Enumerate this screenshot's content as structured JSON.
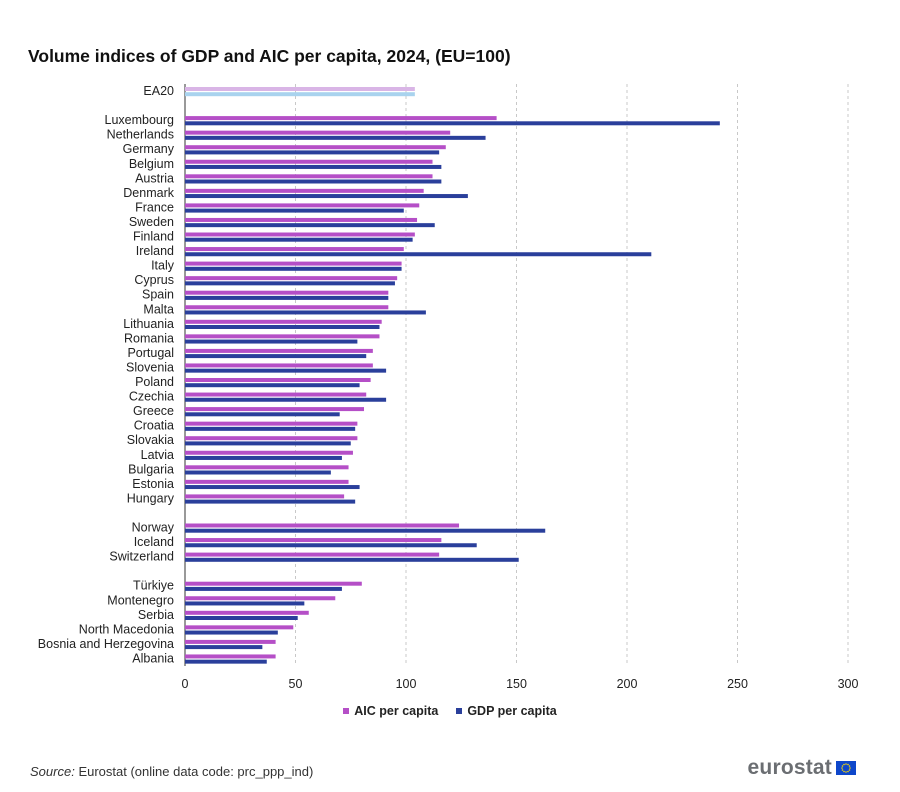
{
  "title": "Volume indices of GDP and AIC per capita, 2024, (EU=100)",
  "source_label": "Source:",
  "source_text": "Eurostat (online data code: prc_ppp_ind)",
  "logo_text": "eurostat",
  "colors": {
    "aic": "#b54fc7",
    "gdp": "#2a3f9b",
    "aic_ea20": "#d9b5e6",
    "gdp_ea20": "#a9d3ee",
    "grid": "#c8c8c8"
  },
  "chart_data": {
    "type": "bar",
    "orientation": "horizontal",
    "title": "Volume indices of GDP and AIC per capita, 2024, (EU=100)",
    "xlim": [
      0,
      300
    ],
    "xticks": [
      0,
      50,
      100,
      150,
      200,
      250,
      300
    ],
    "grid": "vertical dashed",
    "legend": "bottom-center",
    "series_names": [
      "AIC per capita",
      "GDP per capita"
    ],
    "groups": [
      {
        "categories": [
          "EA20"
        ]
      },
      {
        "categories": [
          "Luxembourg",
          "Netherlands",
          "Germany",
          "Belgium",
          "Austria",
          "Denmark",
          "France",
          "Sweden",
          "Finland",
          "Ireland",
          "Italy",
          "Cyprus",
          "Spain",
          "Malta",
          "Lithuania",
          "Romania",
          "Portugal",
          "Slovenia",
          "Poland",
          "Czechia",
          "Greece",
          "Croatia",
          "Slovakia",
          "Latvia",
          "Bulgaria",
          "Estonia",
          "Hungary"
        ]
      },
      {
        "categories": [
          "Norway",
          "Iceland",
          "Switzerland"
        ]
      },
      {
        "categories": [
          "Türkiye",
          "Montenegro",
          "Serbia",
          "North Macedonia",
          "Bosnia and Herzegovina",
          "Albania"
        ]
      }
    ],
    "series": [
      {
        "name": "AIC per capita",
        "values": [
          104,
          141,
          120,
          118,
          112,
          112,
          108,
          106,
          105,
          104,
          99,
          98,
          96,
          92,
          92,
          89,
          88,
          85,
          85,
          84,
          82,
          81,
          78,
          78,
          76,
          74,
          74,
          72,
          124,
          116,
          115,
          80,
          68,
          56,
          49,
          41,
          41
        ]
      },
      {
        "name": "GDP per capita",
        "values": [
          104,
          242,
          136,
          115,
          116,
          116,
          128,
          99,
          113,
          103,
          211,
          98,
          95,
          92,
          109,
          88,
          78,
          82,
          91,
          79,
          91,
          70,
          77,
          75,
          71,
          66,
          79,
          77,
          163,
          132,
          151,
          71,
          54,
          51,
          42,
          35,
          37
        ]
      }
    ]
  },
  "legend": {
    "aic_label": "AIC per capita",
    "gdp_label": "GDP per capita"
  }
}
